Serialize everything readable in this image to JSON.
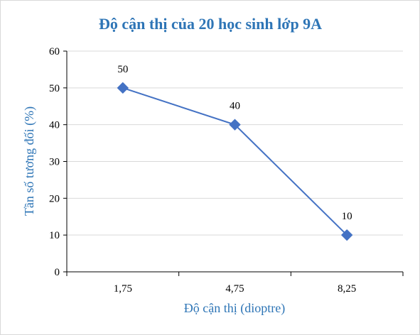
{
  "chart_data": {
    "type": "line",
    "title": "Độ cận thị của 20 học sinh lớp 9A",
    "xlabel": "Độ cận thị (dioptre)",
    "ylabel": "Tần số tương đối (%)",
    "categories": [
      "1,75",
      "4,75",
      "8,25"
    ],
    "series": [
      {
        "values": [
          50,
          40,
          10
        ]
      }
    ],
    "data_labels": [
      "50",
      "40",
      "10"
    ],
    "ylim": [
      0,
      60
    ],
    "yticks": [
      "0",
      "10",
      "20",
      "30",
      "40",
      "50",
      "60"
    ],
    "grid": true,
    "legend": "none",
    "colors": {
      "title": "#2e75b6",
      "axis_title": "#2e75b6",
      "line": "#4472c4",
      "marker": "#4472c4",
      "grid": "#d9d9d9",
      "axis": "#000000"
    }
  }
}
